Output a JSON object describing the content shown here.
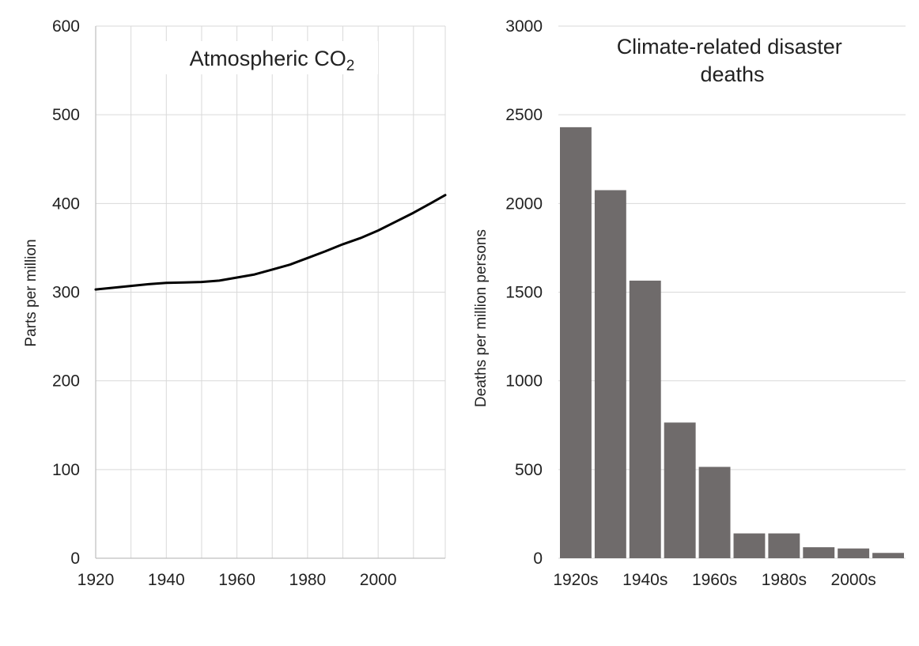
{
  "chart_data": [
    {
      "type": "line",
      "title": "Atmospheric CO",
      "title_subscript": "2",
      "xlabel": "",
      "ylabel": "Parts per million",
      "xlim": [
        1920,
        2019
      ],
      "ylim": [
        0,
        600
      ],
      "x_ticks": [
        "1920",
        "1940",
        "1960",
        "1980",
        "2000"
      ],
      "y_ticks": [
        "0",
        "100",
        "200",
        "300",
        "400",
        "500",
        "600"
      ],
      "grid": true,
      "line_color": "#000000",
      "series": [
        {
          "x": [
            1920,
            1925,
            1930,
            1935,
            1940,
            1945,
            1950,
            1955,
            1960,
            1965,
            1970,
            1975,
            1980,
            1985,
            1990,
            1995,
            2000,
            2005,
            2010,
            2015,
            2019
          ],
          "values": [
            303,
            305,
            307,
            309,
            310.5,
            311,
            311.5,
            313,
            316.5,
            320,
            325.5,
            331,
            338.5,
            346,
            354,
            361,
            369.5,
            379.5,
            389.5,
            400.5,
            409.5
          ]
        }
      ]
    },
    {
      "type": "bar",
      "title_lines": [
        "Climate-related disaster",
        "deaths"
      ],
      "xlabel": "",
      "ylabel": "Deaths per million persons",
      "ylim": [
        0,
        3000
      ],
      "y_ticks": [
        "0",
        "500",
        "1000",
        "1500",
        "2000",
        "2500",
        "3000"
      ],
      "categories": [
        "1920s",
        "1930s",
        "1940s",
        "1950s",
        "1960s",
        "1970s",
        "1980s",
        "1990s",
        "2000s",
        "2010s"
      ],
      "x_tick_labels": [
        "1920s",
        "1940s",
        "1960s",
        "1980s",
        "2000s"
      ],
      "values": [
        2430,
        2075,
        1565,
        765,
        515,
        140,
        140,
        62,
        55,
        30
      ],
      "grid": true,
      "bar_color": "#6f6b6b"
    }
  ]
}
